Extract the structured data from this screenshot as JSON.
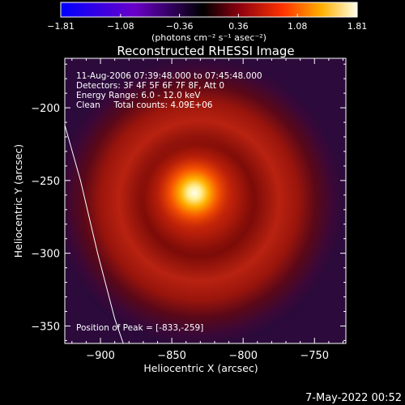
{
  "colorbar": {
    "min": -1.81,
    "max": 1.81,
    "tick_labels": [
      "-1.81",
      "-1.08",
      "-0.36",
      "0.36",
      "1.08",
      "1.81"
    ],
    "unit_label": "(photons cm⁻² s⁻¹ asec⁻²)"
  },
  "chart_data": {
    "type": "heatmap",
    "title": "Reconstructed RHESSI Image",
    "xlabel": "Heliocentric X (arcsec)",
    "ylabel": "Heliocentric Y (arcsec)",
    "xlim": [
      -925,
      -728
    ],
    "ylim": [
      -362,
      -166
    ],
    "xticks": [
      -900,
      -850,
      -800,
      -750
    ],
    "yticks": [
      -200,
      -250,
      -300,
      -350
    ],
    "xtick_labels": [
      "−900",
      "−850",
      "−800",
      "−750"
    ],
    "ytick_labels": [
      "−200",
      "−250",
      "−300",
      "−350"
    ],
    "peak": [
      -833,
      -259
    ],
    "annotations": [
      "11-Aug-2006 07:39:48.000 to 07:45:48.000",
      "Detectors: 3F 4F 5F 6F 7F 8F, Att 0",
      "Energy Range: 6.0 - 12.0 keV",
      "Clean     Total counts: 4.09E+06"
    ],
    "peak_label": "Position of Peak = [-833,-259]",
    "limb_curve": [
      [
        -927,
        -205
      ],
      [
        -914,
        -250
      ],
      [
        -902,
        -300
      ],
      [
        -890,
        -345
      ],
      [
        -884,
        -362
      ]
    ]
  },
  "footer": {
    "timestamp": "7-May-2022 00:52"
  }
}
